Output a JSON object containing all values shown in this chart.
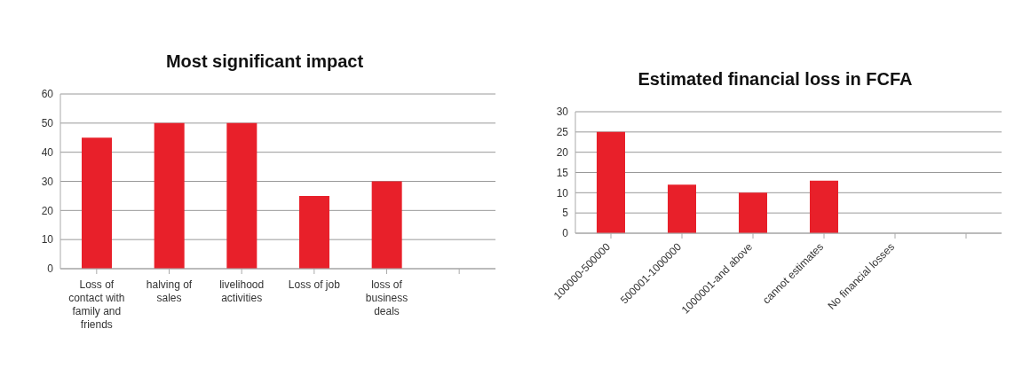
{
  "chart_data": [
    {
      "type": "bar",
      "title": "Most significant impact",
      "categories": [
        "Loss of contact with family and friends",
        "halving of sales",
        "livelihood activities",
        "Loss of job",
        "loss of business deals",
        null
      ],
      "values": [
        45,
        50,
        50,
        25,
        30,
        null
      ],
      "color": "#e8202a",
      "ylim": [
        0,
        60
      ],
      "yticks": [
        0,
        10,
        20,
        30,
        40,
        50,
        60
      ],
      "grid": "y",
      "legend": false
    },
    {
      "type": "bar",
      "title": "Estimated financial loss in FCFA",
      "categories": [
        "100000-500000",
        "500001-1000000",
        "1000001-and above",
        "cannot estimates",
        "No financial losses",
        null
      ],
      "values": [
        25,
        12,
        10,
        13,
        0,
        null
      ],
      "color": "#e8202a",
      "ylim": [
        0,
        30
      ],
      "yticks": [
        0,
        5,
        10,
        15,
        20,
        25,
        30
      ],
      "grid": "y",
      "legend": false
    }
  ]
}
